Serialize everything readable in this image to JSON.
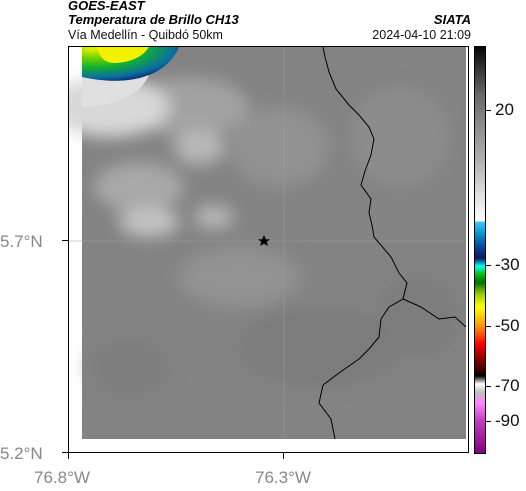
{
  "header": {
    "satellite": "GOES-EAST",
    "product": "Temperatura de Brillo CH13",
    "region": "Vía Medellín - Quibdó 50km",
    "source": "SIATA",
    "timestamp": "2024-04-10 21:09"
  },
  "axes": {
    "lat_labels": [
      "5.7°N",
      "5.2°N"
    ],
    "lon_labels": [
      "76.8°W",
      "76.3°W"
    ]
  },
  "colorbar": {
    "labels": [
      "20",
      "-30",
      "-50",
      "-70",
      "-90"
    ]
  },
  "colors": {
    "map_gray": "#838383",
    "frame": "#000000",
    "tick_label": "#888888"
  }
}
